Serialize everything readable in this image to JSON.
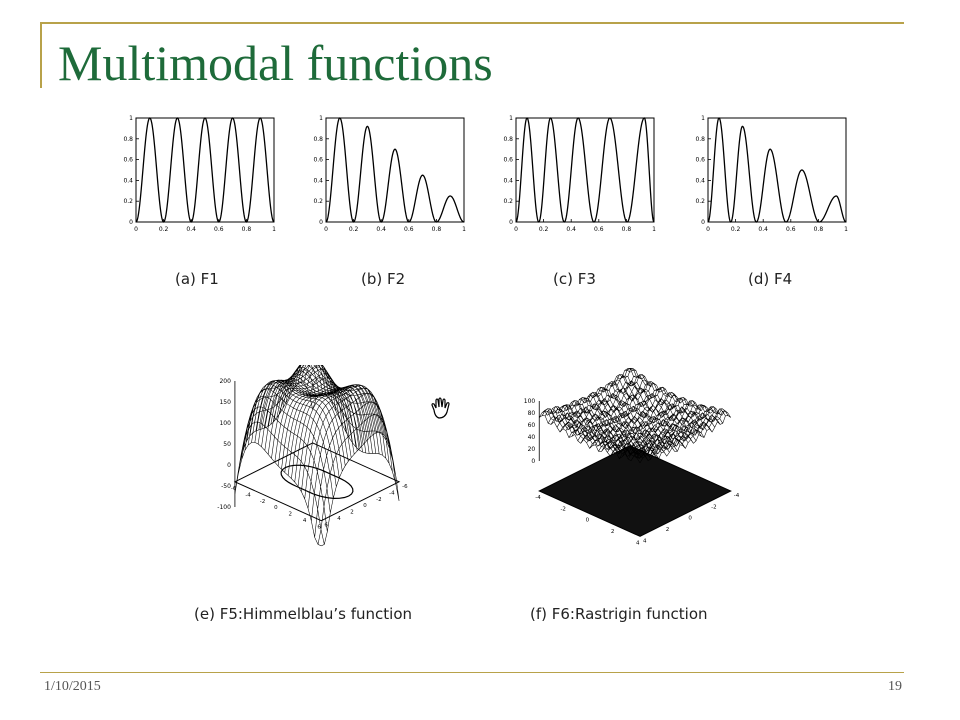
{
  "slide": {
    "title": "Multimodal functions",
    "date": "1/10/2015",
    "page_number": "19"
  },
  "captions": {
    "a": "(a) F1",
    "b": "(b) F2",
    "c": "(c) F3",
    "d": "(d) F4",
    "e": "(e) F5:Himmelblau’s function",
    "f": "(f) F6:Rastrigin function"
  },
  "chart_data": [
    {
      "type": "line",
      "function": "F1",
      "xlim": [
        0,
        1
      ],
      "ylim": [
        0,
        1
      ],
      "xticks": [
        "0",
        "0.2",
        "0.4",
        "0.6",
        "0.8",
        "1"
      ],
      "yticks": [
        "0",
        "0.2",
        "0.4",
        "0.6",
        "0.8",
        "1"
      ],
      "peaks_x": [
        0.1,
        0.3,
        0.5,
        0.7,
        0.9
      ],
      "peaks_y": [
        1,
        1,
        1,
        1,
        1
      ]
    },
    {
      "type": "line",
      "function": "F2",
      "xlim": [
        0,
        1
      ],
      "ylim": [
        0,
        1
      ],
      "xticks": [
        "0",
        "0.2",
        "0.4",
        "0.6",
        "0.8",
        "1"
      ],
      "yticks": [
        "0",
        "0.2",
        "0.4",
        "0.6",
        "0.8",
        "1"
      ],
      "peaks_x": [
        0.1,
        0.3,
        0.5,
        0.7,
        0.9
      ],
      "peaks_y": [
        1,
        0.92,
        0.7,
        0.45,
        0.25
      ]
    },
    {
      "type": "line",
      "function": "F3",
      "xlim": [
        0,
        1
      ],
      "ylim": [
        0,
        1
      ],
      "xticks": [
        "0",
        "0.2",
        "0.4",
        "0.6",
        "0.8",
        "1"
      ],
      "yticks": [
        "0",
        "0.2",
        "0.4",
        "0.6",
        "0.8",
        "1"
      ],
      "peaks_x": [
        0.08,
        0.25,
        0.45,
        0.68,
        0.93
      ],
      "peaks_y": [
        1,
        1,
        1,
        1,
        1
      ]
    },
    {
      "type": "line",
      "function": "F4",
      "xlim": [
        0,
        1
      ],
      "ylim": [
        0,
        1
      ],
      "xticks": [
        "0",
        "0.2",
        "0.4",
        "0.6",
        "0.8",
        "1"
      ],
      "yticks": [
        "0",
        "0.2",
        "0.4",
        "0.6",
        "0.8",
        "1"
      ],
      "peaks_x": [
        0.08,
        0.25,
        0.45,
        0.68,
        0.93
      ],
      "peaks_y": [
        1,
        0.92,
        0.7,
        0.5,
        0.25
      ]
    },
    {
      "type": "surface",
      "function": "F5 Himmelblau",
      "zticks": [
        "200",
        "150",
        "100",
        "50",
        "0",
        "-50",
        "-100"
      ],
      "xyticks": [
        "-6",
        "-4",
        "-2",
        "0",
        "2",
        "4",
        "6"
      ]
    },
    {
      "type": "surface",
      "function": "F6 Rastrigin",
      "zticks": [
        "100",
        "80",
        "60",
        "40",
        "20",
        "0"
      ],
      "xyticks": [
        "-4",
        "-2",
        "0",
        "2",
        "4"
      ]
    }
  ]
}
